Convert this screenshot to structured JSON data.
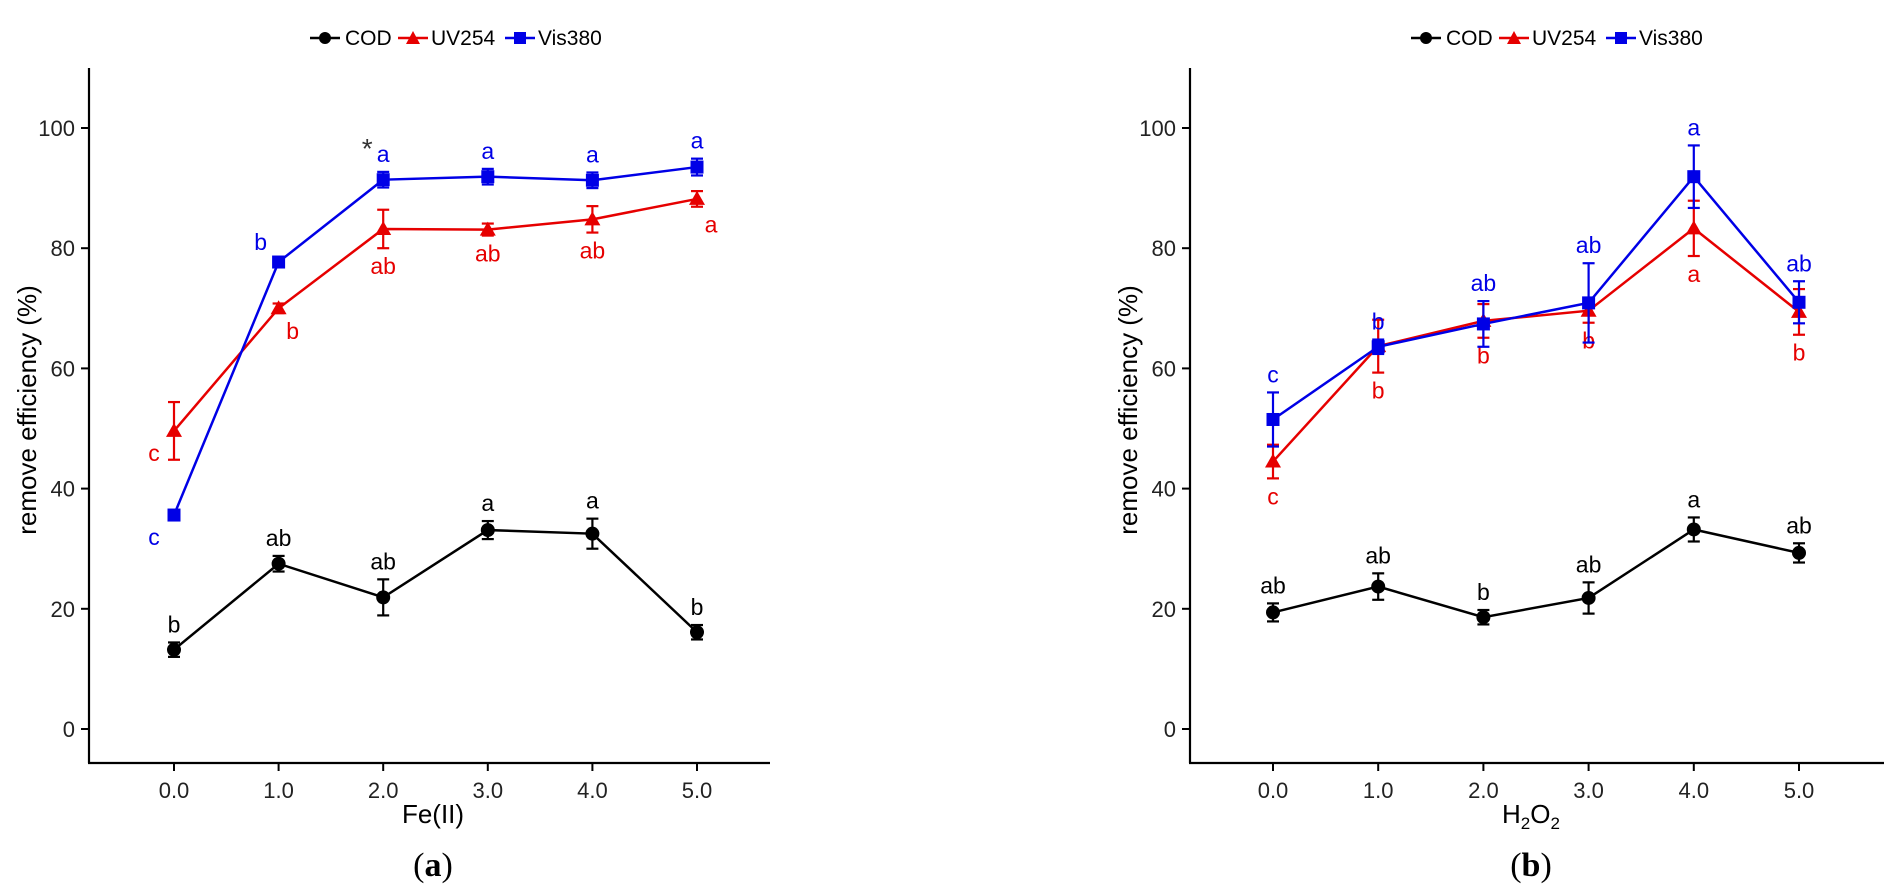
{
  "figure": {
    "panel_labels": [
      {
        "open": "(",
        "letter": "a",
        "close": ")"
      },
      {
        "open": "(",
        "letter": "b",
        "close": ")"
      }
    ]
  },
  "colors": {
    "COD": "#000000",
    "UV254": "#e60000",
    "Vis380": "#0000e6"
  },
  "chart_data": [
    {
      "type": "line",
      "title": "",
      "xlabel": {
        "text": "Fe(II)"
      },
      "ylabel": "remove efficiency (%)",
      "categories": [
        "0.0",
        "1.0",
        "2.0",
        "3.0",
        "4.0",
        "5.0"
      ],
      "ylim": [
        -5,
        110
      ],
      "yticks": [
        0,
        20,
        40,
        60,
        80,
        100
      ],
      "legend": {
        "position": "top",
        "entries": [
          "COD",
          "UV254",
          "Vis380"
        ]
      },
      "series": [
        {
          "name": "COD",
          "marker": "circle",
          "values": [
            13.2,
            27.5,
            21.9,
            33.1,
            32.5,
            16.1
          ],
          "errors": [
            1.2,
            1.3,
            3.0,
            1.5,
            2.5,
            1.2
          ],
          "labels": [
            "b",
            "ab",
            "ab",
            "a",
            "a",
            "b"
          ]
        },
        {
          "name": "UV254",
          "marker": "triangle",
          "values": [
            49.6,
            70.0,
            83.2,
            83.1,
            84.8,
            88.2
          ],
          "errors": [
            4.8,
            0.8,
            3.2,
            1.0,
            2.2,
            1.3
          ],
          "labels": [
            "c",
            "b",
            "ab",
            "ab",
            "ab",
            "a"
          ]
        },
        {
          "name": "Vis380",
          "marker": "square",
          "values": [
            35.6,
            77.7,
            91.4,
            91.9,
            91.3,
            93.5
          ],
          "errors": [
            0.4,
            0.8,
            1.3,
            1.3,
            1.3,
            1.4
          ],
          "labels": [
            "c",
            "b",
            "a",
            "a",
            "a",
            "a"
          ]
        }
      ],
      "annotations": [
        {
          "text": "*",
          "category": "2.0",
          "near": "Vis380"
        }
      ]
    },
    {
      "type": "line",
      "title": "",
      "xlabel": {
        "text": "H",
        "sub1": "2",
        "mid": "O",
        "sub2": "2"
      },
      "ylabel": "remove efficiency (%)",
      "categories": [
        "0.0",
        "1.0",
        "2.0",
        "3.0",
        "4.0",
        "5.0"
      ],
      "ylim": [
        -5,
        110
      ],
      "yticks": [
        0,
        20,
        40,
        60,
        80,
        100
      ],
      "legend": {
        "position": "top",
        "entries": [
          "COD",
          "UV254",
          "Vis380"
        ]
      },
      "series": [
        {
          "name": "COD",
          "marker": "circle",
          "values": [
            19.4,
            23.7,
            18.6,
            21.8,
            33.2,
            29.3
          ],
          "errors": [
            1.5,
            2.2,
            1.2,
            2.6,
            2.0,
            1.6
          ],
          "labels": [
            "ab",
            "ab",
            "b",
            "ab",
            "a",
            "ab"
          ]
        },
        {
          "name": "UV254",
          "marker": "triangle",
          "values": [
            44.5,
            63.7,
            67.9,
            69.6,
            83.3,
            69.4
          ],
          "errors": [
            2.8,
            4.4,
            2.8,
            2.0,
            4.6,
            3.8
          ],
          "labels": [
            "c",
            "b",
            "b",
            "b",
            "a",
            "b"
          ]
        },
        {
          "name": "Vis380",
          "marker": "square",
          "values": [
            51.5,
            63.6,
            67.4,
            70.9,
            91.9,
            71.0
          ],
          "errors": [
            4.5,
            1.2,
            3.8,
            6.6,
            5.2,
            3.5
          ],
          "labels": [
            "c",
            "b",
            "ab",
            "ab",
            "a",
            "ab"
          ]
        }
      ],
      "annotations": []
    }
  ]
}
